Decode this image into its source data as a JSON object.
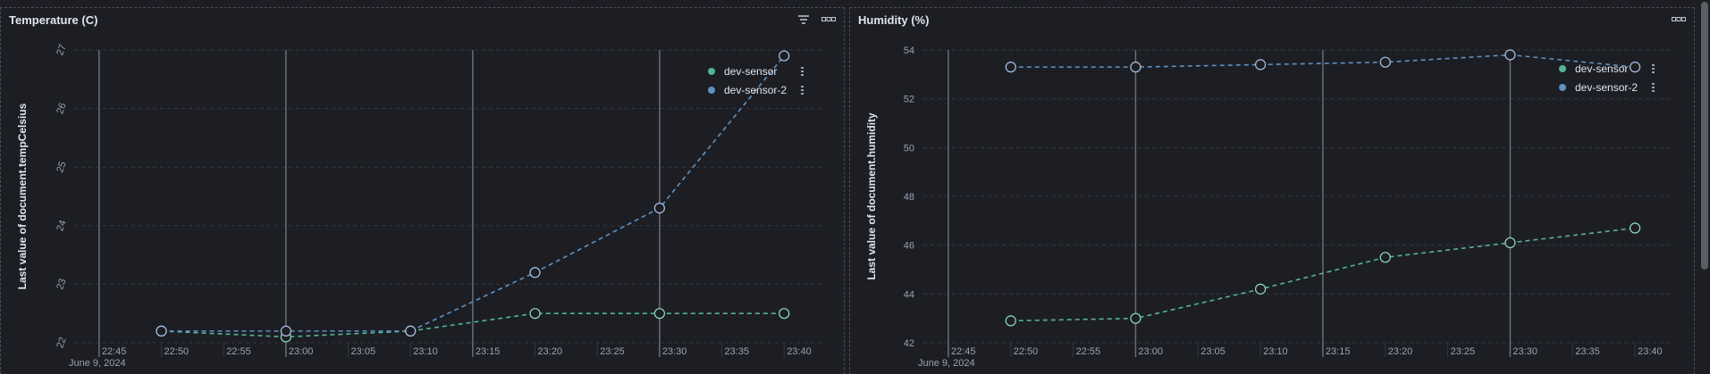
{
  "colors": {
    "series1": "#54b399",
    "series2": "#6092c0",
    "grid": "#343741",
    "text": "#98a2b3",
    "annotation": "#6a6d75"
  },
  "panels": [
    {
      "title": "Temperature (C)",
      "actions": [
        "filter-icon",
        "more-icon"
      ],
      "legend": [
        "dev-sensor",
        "dev-sensor-2"
      ]
    },
    {
      "title": "Humidity (%)",
      "actions": [
        "more-icon"
      ],
      "legend": [
        "dev-sensor",
        "dev-sensor-2"
      ]
    }
  ],
  "chart_data": [
    {
      "type": "line",
      "title": "Temperature (C)",
      "ylabel": "Last value of document.tempCelsius",
      "xlabel": "",
      "ylim": [
        22,
        27
      ],
      "yticks": [
        "22",
        "23",
        "24",
        "25",
        "26",
        "27"
      ],
      "xticks": [
        "22:45",
        "22:50",
        "22:55",
        "23:00",
        "23:05",
        "23:10",
        "23:15",
        "23:20",
        "23:25",
        "23:30",
        "23:35",
        "23:40"
      ],
      "date_label": "June 9, 2024",
      "xlim": [
        "22:43",
        "23:43"
      ],
      "vertical_markers": [
        "22:45",
        "23:00",
        "23:15",
        "23:30"
      ],
      "series": [
        {
          "name": "dev-sensor",
          "x": [
            "22:50",
            "23:00",
            "23:10",
            "23:20",
            "23:30",
            "23:40"
          ],
          "values": [
            22.2,
            22.1,
            22.2,
            22.5,
            22.5,
            22.5
          ]
        },
        {
          "name": "dev-sensor-2",
          "x": [
            "22:50",
            "23:00",
            "23:10",
            "23:20",
            "23:30",
            "23:40"
          ],
          "values": [
            22.2,
            22.2,
            22.2,
            23.2,
            24.3,
            26.9
          ]
        }
      ],
      "legend_position": "top-right",
      "grid": true
    },
    {
      "type": "line",
      "title": "Humidity (%)",
      "ylabel": "Last value of document.humidity",
      "xlabel": "",
      "ylim": [
        42,
        54
      ],
      "yticks": [
        "42",
        "44",
        "46",
        "48",
        "50",
        "52",
        "54"
      ],
      "xticks": [
        "22:45",
        "22:50",
        "22:55",
        "23:00",
        "23:05",
        "23:10",
        "23:15",
        "23:20",
        "23:25",
        "23:30",
        "23:35",
        "23:40"
      ],
      "date_label": "June 9, 2024",
      "xlim": [
        "22:43",
        "23:43"
      ],
      "vertical_markers": [
        "22:45",
        "23:00",
        "23:15",
        "23:30"
      ],
      "series": [
        {
          "name": "dev-sensor",
          "x": [
            "22:50",
            "23:00",
            "23:10",
            "23:20",
            "23:30",
            "23:40"
          ],
          "values": [
            42.9,
            43.0,
            44.2,
            45.5,
            46.1,
            46.7
          ]
        },
        {
          "name": "dev-sensor-2",
          "x": [
            "22:50",
            "23:00",
            "23:10",
            "23:20",
            "23:30",
            "23:40"
          ],
          "values": [
            53.3,
            53.3,
            53.4,
            53.5,
            53.8,
            53.3
          ]
        }
      ],
      "legend_position": "top-right",
      "grid": true
    }
  ]
}
